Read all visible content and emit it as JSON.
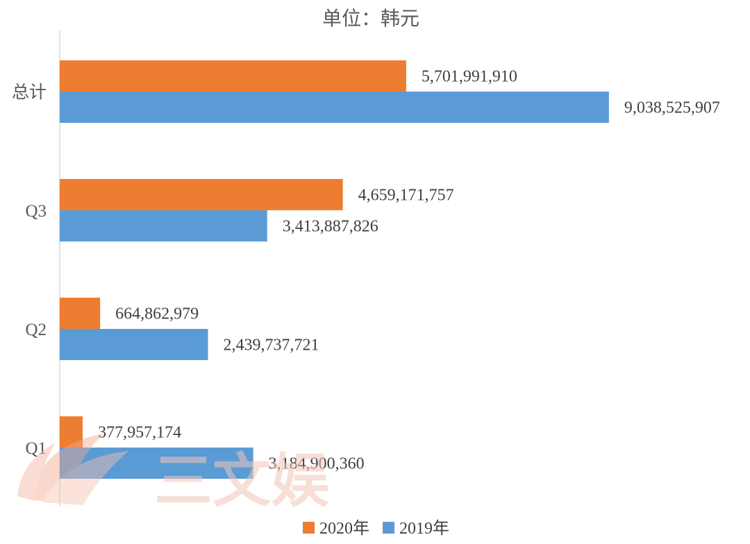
{
  "chart_data": {
    "type": "bar",
    "orientation": "horizontal",
    "title": "单位：韩元",
    "categories": [
      "总计",
      "Q3",
      "Q2",
      "Q1"
    ],
    "series": [
      {
        "name": "2020年",
        "color": "#ED7D31",
        "values": [
          5701991910,
          4659171757,
          664862979,
          377957174
        ]
      },
      {
        "name": "2019年",
        "color": "#5B9BD5",
        "values": [
          9038525907,
          3413887826,
          2439737721,
          3184900360
        ]
      }
    ],
    "xlim": [
      0,
      10000000000
    ],
    "grid": false,
    "legend": "bottom"
  },
  "watermark": {
    "text": "三文娱",
    "icon": "fan-logo-icon"
  }
}
